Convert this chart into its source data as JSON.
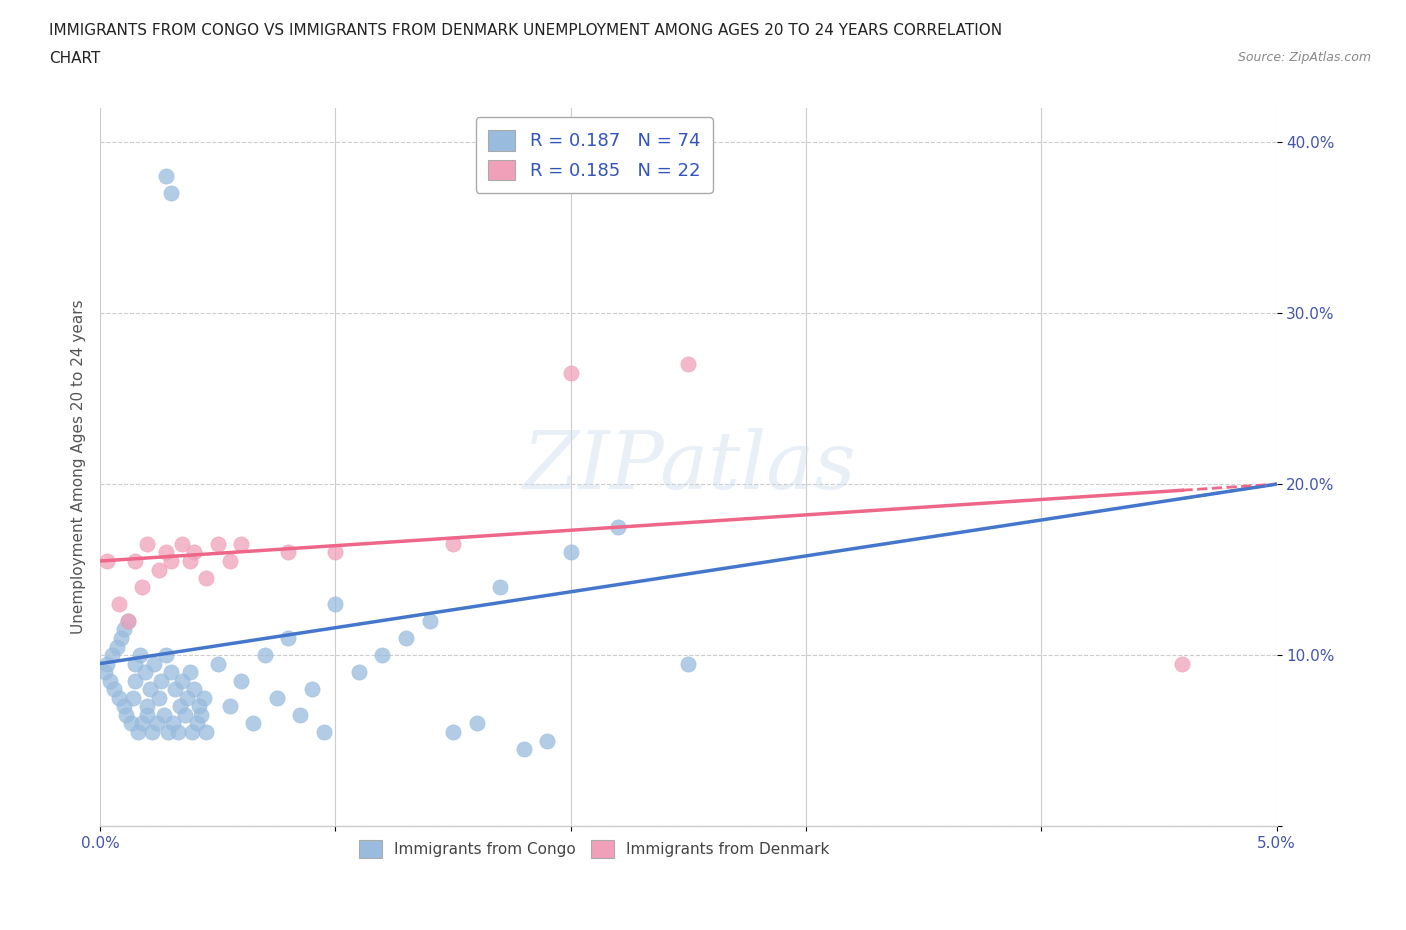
{
  "title_line1": "IMMIGRANTS FROM CONGO VS IMMIGRANTS FROM DENMARK UNEMPLOYMENT AMONG AGES 20 TO 24 YEARS CORRELATION",
  "title_line2": "CHART",
  "source": "Source: ZipAtlas.com",
  "ylabel": "Unemployment Among Ages 20 to 24 years",
  "xlim": [
    0.0,
    0.05
  ],
  "ylim": [
    0.0,
    0.42
  ],
  "xticks": [
    0.0,
    0.01,
    0.02,
    0.03,
    0.04,
    0.05
  ],
  "xticklabels": [
    "0.0%",
    "",
    "",
    "",
    "",
    "5.0%"
  ],
  "yticks": [
    0.0,
    0.1,
    0.2,
    0.3,
    0.4
  ],
  "yticklabels": [
    "",
    "10.0%",
    "20.0%",
    "30.0%",
    "40.0%"
  ],
  "congo_color": "#99bbdd",
  "denmark_color": "#f0a0b8",
  "congo_line_color": "#4477cc",
  "denmark_line_color": "#ee6688",
  "congo_R": 0.187,
  "congo_N": 74,
  "denmark_R": 0.185,
  "denmark_N": 22,
  "legend_text_color": "#3355bb",
  "congo_x": [
    0.0002,
    0.0003,
    0.0004,
    0.0005,
    0.0006,
    0.0007,
    0.0008,
    0.0009,
    0.001,
    0.001,
    0.0011,
    0.0012,
    0.0013,
    0.0014,
    0.0015,
    0.0015,
    0.0016,
    0.0017,
    0.0018,
    0.0019,
    0.002,
    0.002,
    0.0021,
    0.0022,
    0.0023,
    0.0024,
    0.0025,
    0.0026,
    0.0027,
    0.0028,
    0.0029,
    0.003,
    0.0031,
    0.0032,
    0.0033,
    0.0034,
    0.0035,
    0.0036,
    0.0037,
    0.0038,
    0.0039,
    0.004,
    0.0041,
    0.0042,
    0.0043,
    0.0044,
    0.0045,
    0.005,
    0.0055,
    0.006,
    0.0065,
    0.007,
    0.0075,
    0.008,
    0.0085,
    0.009,
    0.0095,
    0.01,
    0.011,
    0.012,
    0.013,
    0.014,
    0.015,
    0.016,
    0.017,
    0.018,
    0.019,
    0.02,
    0.022,
    0.025,
    0.0028,
    0.003
  ],
  "congo_y": [
    0.09,
    0.095,
    0.085,
    0.1,
    0.08,
    0.105,
    0.075,
    0.11,
    0.07,
    0.115,
    0.065,
    0.12,
    0.06,
    0.075,
    0.085,
    0.095,
    0.055,
    0.1,
    0.06,
    0.09,
    0.065,
    0.07,
    0.08,
    0.055,
    0.095,
    0.06,
    0.075,
    0.085,
    0.065,
    0.1,
    0.055,
    0.09,
    0.06,
    0.08,
    0.055,
    0.07,
    0.085,
    0.065,
    0.075,
    0.09,
    0.055,
    0.08,
    0.06,
    0.07,
    0.065,
    0.075,
    0.055,
    0.095,
    0.07,
    0.085,
    0.06,
    0.1,
    0.075,
    0.11,
    0.065,
    0.08,
    0.055,
    0.13,
    0.09,
    0.1,
    0.11,
    0.12,
    0.055,
    0.06,
    0.14,
    0.045,
    0.05,
    0.16,
    0.175,
    0.095,
    0.38,
    0.37
  ],
  "denmark_x": [
    0.0003,
    0.0008,
    0.0012,
    0.0015,
    0.0018,
    0.002,
    0.0025,
    0.0028,
    0.003,
    0.0035,
    0.0038,
    0.004,
    0.0045,
    0.005,
    0.0055,
    0.006,
    0.008,
    0.01,
    0.015,
    0.02,
    0.025,
    0.046
  ],
  "denmark_y": [
    0.155,
    0.13,
    0.12,
    0.155,
    0.14,
    0.165,
    0.15,
    0.16,
    0.155,
    0.165,
    0.155,
    0.16,
    0.145,
    0.165,
    0.155,
    0.165,
    0.16,
    0.16,
    0.165,
    0.265,
    0.27,
    0.095
  ]
}
